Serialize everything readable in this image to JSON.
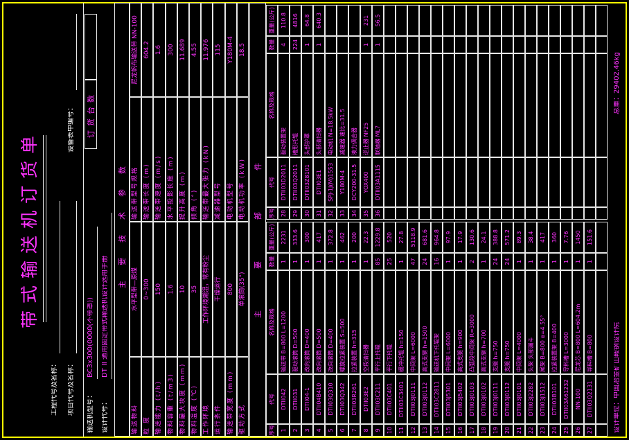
{
  "title": "带式输送机订货单",
  "header": {
    "project_label": "工程代号及名称：",
    "item_label": "项目代号及名称：",
    "equipment_label": "设备表中编号：",
    "order_label": "订货台数",
    "model_label": "输送机型号：",
    "model_value": "BC3x300(0000(不带罩))",
    "design_label": "设计代号：",
    "design_value": "DT II  通用固定带式输送机设计选用手册"
  },
  "params": {
    "section_label": "主要技术参数",
    "left": [
      {
        "label": "输送物料",
        "value": "水平型带—原煤"
      },
      {
        "label": "粒 度",
        "value": "0~300"
      },
      {
        "label": "输送能力 (t/h)",
        "value": 150
      },
      {
        "label": "物料容重 (t/m3)",
        "value": 1.6
      },
      {
        "label": "物料最大块度 (mm)",
        "value": 10
      },
      {
        "label": "物料温度 (℃)",
        "value": 35
      },
      {
        "label": "工作环境",
        "value": "工作环境潮湿，常有粉尘"
      },
      {
        "label": "运行条件",
        "value": "干燥运行"
      },
      {
        "label": "输送带宽度 (mm)",
        "value": 800
      },
      {
        "label": "驱动方式",
        "value": "单滚筒(35°)"
      }
    ],
    "right": [
      {
        "label": "输送带型号规格",
        "value": "尼龙帆布输送带 NN-100"
      },
      {
        "label": "输送带长度 (m)",
        "value": 604.2
      },
      {
        "label": "输送带速度 (m/s)",
        "value": 1.6
      },
      {
        "label": "水平投影长度 (m)",
        "value": 300
      },
      {
        "label": "提升高度 (m)",
        "value": 11.689
      },
      {
        "label": "倾角 (°)",
        "value": 4.55
      },
      {
        "label": "输送带最大张力 (kN)",
        "value": 11.976
      },
      {
        "label": "减速器型号",
        "value": 115
      },
      {
        "label": "电动机型号",
        "value": "Y180M-4"
      },
      {
        "label": "电动机功率 (kW)",
        "value": 18.5
      }
    ]
  },
  "parts": {
    "section_label": "主要部件",
    "columns": [
      "序号",
      "代号",
      "名称及规格",
      "数量",
      "重量(公斤)"
    ],
    "left": [
      {
        "no": 1,
        "code": "DTII042",
        "name": "输送带 B=800 L=1200",
        "qty": 1,
        "weight": 2231
      },
      {
        "no": 2,
        "code": "DTII031",
        "name": "驱动滚筒 D=500",
        "qty": 1,
        "weight": 333.6
      },
      {
        "no": 3,
        "code": "DTII04-1",
        "name": "改向滚筒 D=400",
        "qty": 1,
        "weight": 300
      },
      {
        "no": 4,
        "code": "DTII04B410",
        "name": "改向滚筒 D=500",
        "qty": 1,
        "weight": 417
      },
      {
        "no": 5,
        "code": "DTII03Q310",
        "name": "改向滚筒 D=400",
        "qty": 1,
        "weight": 372.8
      },
      {
        "no": 6,
        "code": "DTII03Q342",
        "name": "螺旋拉紧装置 S=500",
        "qty": 1,
        "weight": 462
      },
      {
        "no": 7,
        "code": "DTII03R261",
        "name": "拉紧装置 h=315",
        "qty": 1,
        "weight": 200
      },
      {
        "no": 8,
        "code": "DTII03E2",
        "name": "空段清扫器",
        "qty": 1,
        "weight": 22.3
      },
      {
        "no": 9,
        "code": "DTII03C211",
        "name": "平行上托辊",
        "qty": 85,
        "weight": 1229.8
      },
      {
        "no": 10,
        "code": "DTII03C401",
        "name": "平行下托辊",
        "qty": 25,
        "weight": 520
      },
      {
        "no": 11,
        "code": "DTII03C3401",
        "name": "缓冲托辊 h=150",
        "qty": 1,
        "weight": 27.8
      },
      {
        "no": 12,
        "code": "DTII03J0111",
        "name": "中间架 L=6000",
        "qty": 47,
        "weight": 5118.9
      },
      {
        "no": 13,
        "code": "DTII03J0112",
        "name": "高式支腿 h=1500",
        "qty": 24,
        "weight": 681.6
      },
      {
        "no": 14,
        "code": "DTII03C2811",
        "name": "输送机下托辊架",
        "qty": 16,
        "weight": 964.8
      },
      {
        "no": 15,
        "code": "DTII03J5301",
        "name": "中间架 L=6000",
        "qty": 1,
        "weight": 97.9
      },
      {
        "no": 16,
        "code": "DTII03J5402",
        "name": "高式支腿 h=900",
        "qty": 1,
        "weight": 17.9
      },
      {
        "no": 17,
        "code": "DTII03J0103",
        "name": "凸弧段中间架 R=3000",
        "qty": 2,
        "weight": 130.6
      },
      {
        "no": 18,
        "code": "DTII03J0102",
        "name": "高式支腿 h=700",
        "qty": 1,
        "weight": 24.1
      },
      {
        "no": 19,
        "code": "DTII03J0111",
        "name": "支腿 h=750",
        "qty": 24,
        "weight": 388.8
      },
      {
        "no": 20,
        "code": "DTII03J0112",
        "name": "支腿 h=750",
        "qty": 24,
        "weight": 571.2
      },
      {
        "no": 21,
        "code": "DTII03J0101",
        "name": "中间架 L=4000",
        "qty": 1,
        "weight": 89.3
      },
      {
        "no": 22,
        "code": "DTII03J2282",
        "name": "头架 头部漏斗",
        "qty": 1,
        "weight": 38.4
      },
      {
        "no": 23,
        "code": "DTII03J1512",
        "name": "尾架 B=800 α=4.55°",
        "qty": 1,
        "weight": 417
      },
      {
        "no": 24,
        "code": "DTII03B101",
        "name": "拉紧装置架 B=400",
        "qty": 1,
        "weight": 360
      },
      {
        "no": 25,
        "code": "DTII03A61232",
        "name": "导料槽 L=3000",
        "qty": 1,
        "weight": 7.76
      },
      {
        "no": 26,
        "code": "NN-100",
        "name": "尼龙芯 B=800 L=604.2m",
        "qty": 1,
        "weight": 1450
      },
      {
        "no": 27,
        "code": "DTII03Q2131",
        "name": "导料槽 B=800",
        "qty": 1,
        "weight": 151.6
      }
    ],
    "right": [
      {
        "no": 28,
        "code": "DTII03D2011",
        "name": "驱动装置架",
        "qty": 4,
        "weight": 110.8
      },
      {
        "no": 29,
        "code": "DTII03Q2011",
        "name": "槽形托辊",
        "qty": 224,
        "weight": 4816
      },
      {
        "no": 30,
        "code": "DTII03Z8101",
        "name": "头部护罩",
        "qty": 1,
        "weight": 64.8
      },
      {
        "no": 31,
        "code": "DTII03E1",
        "name": "头部清扫器",
        "qty": 1,
        "weight": 640.3
      },
      {
        "no": 32,
        "code": "SPJ-1J(M)1553",
        "name": "电动机 N=18.5kW"
      },
      {
        "no": 33,
        "code": "Y180M-4",
        "name": "减速器 速比=31.5"
      },
      {
        "no": 34,
        "code": "DCY200-31.5",
        "name": "液力偶合器"
      },
      {
        "no": 35,
        "code": "YOX400",
        "name": "逆止器 NF25",
        "qty": 1,
        "weight": 231
      },
      {
        "no": 36,
        "code": "DTII03A1115",
        "name": "联轴器 ML7",
        "qty": 1,
        "weight": 56.5
      }
    ]
  },
  "footer": {
    "designer": "设计单位：中国冶金矿山鞍钢设计院",
    "total": "总重：29402.46kg"
  }
}
